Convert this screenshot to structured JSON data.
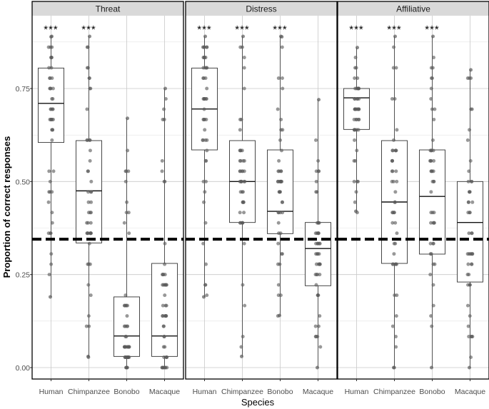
{
  "chart_data": {
    "type": "boxplot",
    "xlabel": "Species",
    "ylabel": "Proportion of correct responses",
    "ylim": [
      -0.03,
      0.98
    ],
    "yticks": [
      0.0,
      0.25,
      0.5,
      0.75
    ],
    "ytick_labels": [
      "0.00",
      "0.25",
      "0.50",
      "0.75"
    ],
    "categories": [
      "Human",
      "Chimpanzee",
      "Bonobo",
      "Macaque"
    ],
    "chance_level": 0.345,
    "colors": {
      "strip_bg": "#d9d9d9",
      "grid": "#c8c8c8",
      "box": "#333333",
      "point": "#595959",
      "chance": "#000000",
      "panel_border": "#000000"
    },
    "panels": [
      {
        "label": "Threat",
        "significance": [
          "***",
          "***",
          "",
          ""
        ],
        "boxes": [
          {
            "species": "Human",
            "q1": 0.605,
            "median": 0.71,
            "q3": 0.805,
            "min": 0.19,
            "max": 0.89
          },
          {
            "species": "Chimpanzee",
            "q1": 0.335,
            "median": 0.475,
            "q3": 0.61,
            "min": 0.03,
            "max": 0.89
          },
          {
            "species": "Bonobo",
            "q1": 0.03,
            "median": 0.085,
            "q3": 0.19,
            "min": 0.0,
            "max": 0.67
          },
          {
            "species": "Macaque",
            "q1": 0.03,
            "median": 0.085,
            "q3": 0.28,
            "min": 0.0,
            "max": 0.75
          }
        ]
      },
      {
        "label": "Distress",
        "significance": [
          "***",
          "***",
          "***",
          ""
        ],
        "boxes": [
          {
            "species": "Human",
            "q1": 0.585,
            "median": 0.695,
            "q3": 0.805,
            "min": 0.19,
            "max": 0.89
          },
          {
            "species": "Chimpanzee",
            "q1": 0.39,
            "median": 0.5,
            "q3": 0.61,
            "min": 0.03,
            "max": 0.89
          },
          {
            "species": "Bonobo",
            "q1": 0.36,
            "median": 0.42,
            "q3": 0.585,
            "min": 0.14,
            "max": 0.89
          },
          {
            "species": "Macaque",
            "q1": 0.22,
            "median": 0.32,
            "q3": 0.39,
            "min": 0.0,
            "max": 0.72
          }
        ]
      },
      {
        "label": "Affiliative",
        "significance": [
          "***",
          "***",
          "***",
          ""
        ],
        "boxes": [
          {
            "species": "Human",
            "q1": 0.64,
            "median": 0.725,
            "q3": 0.75,
            "min": 0.42,
            "max": 0.86
          },
          {
            "species": "Chimpanzee",
            "q1": 0.28,
            "median": 0.445,
            "q3": 0.61,
            "min": 0.0,
            "max": 0.89
          },
          {
            "species": "Bonobo",
            "q1": 0.305,
            "median": 0.46,
            "q3": 0.585,
            "min": 0.0,
            "max": 0.89
          },
          {
            "species": "Macaque",
            "q1": 0.23,
            "median": 0.39,
            "q3": 0.5,
            "min": 0.0,
            "max": 0.8
          }
        ]
      }
    ]
  }
}
